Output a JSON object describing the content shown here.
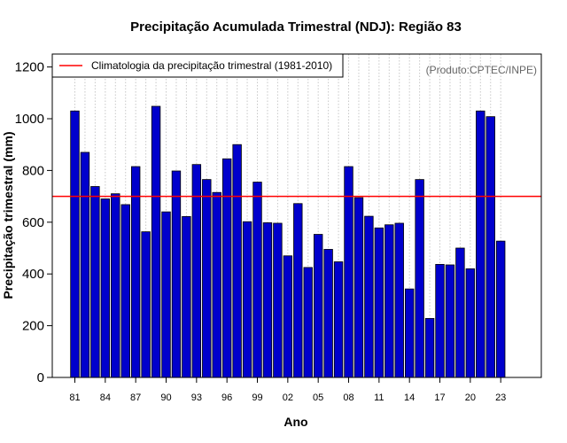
{
  "chart_data": {
    "type": "bar",
    "title": "Precipitação Acumulada Trimestral (NDJ): Região 83",
    "xlabel": "Ano",
    "ylabel": "Precipitação trimestral (mm)",
    "ylim": [
      0,
      1250
    ],
    "yticks": [
      0,
      200,
      400,
      600,
      800,
      1000,
      1200
    ],
    "tick_labels": [
      "81",
      "84",
      "87",
      "90",
      "93",
      "96",
      "99",
      "02",
      "05",
      "08",
      "11",
      "14",
      "17",
      "20",
      "23"
    ],
    "tick_years": [
      1981,
      1984,
      1987,
      1990,
      1993,
      1996,
      1999,
      2002,
      2005,
      2008,
      2011,
      2014,
      2017,
      2020,
      2023
    ],
    "years": [
      1981,
      1982,
      1983,
      1984,
      1985,
      1986,
      1987,
      1988,
      1989,
      1990,
      1991,
      1992,
      1993,
      1994,
      1995,
      1996,
      1997,
      1998,
      1999,
      2000,
      2001,
      2002,
      2003,
      2004,
      2005,
      2006,
      2007,
      2008,
      2009,
      2010,
      2011,
      2012,
      2013,
      2014,
      2015,
      2016,
      2017,
      2018,
      2019,
      2020,
      2021,
      2022,
      2023
    ],
    "values": [
      1030,
      870,
      738,
      690,
      710,
      668,
      815,
      563,
      1048,
      640,
      798,
      622,
      823,
      765,
      715,
      845,
      900,
      602,
      755,
      598,
      596,
      470,
      672,
      425,
      553,
      495,
      447,
      815,
      695,
      623,
      578,
      590,
      596,
      342,
      765,
      228,
      437,
      435,
      500,
      420,
      1030,
      1008,
      527
    ],
    "climatology": 700,
    "bar_color": "#0000CC",
    "climatology_color": "#FF0000",
    "grid": true,
    "legend": {
      "label": "Climatologia da precipitação trimestral (1981-2010)",
      "position": "top-left"
    },
    "watermark": "(Produto:CPTEC/INPE)"
  }
}
